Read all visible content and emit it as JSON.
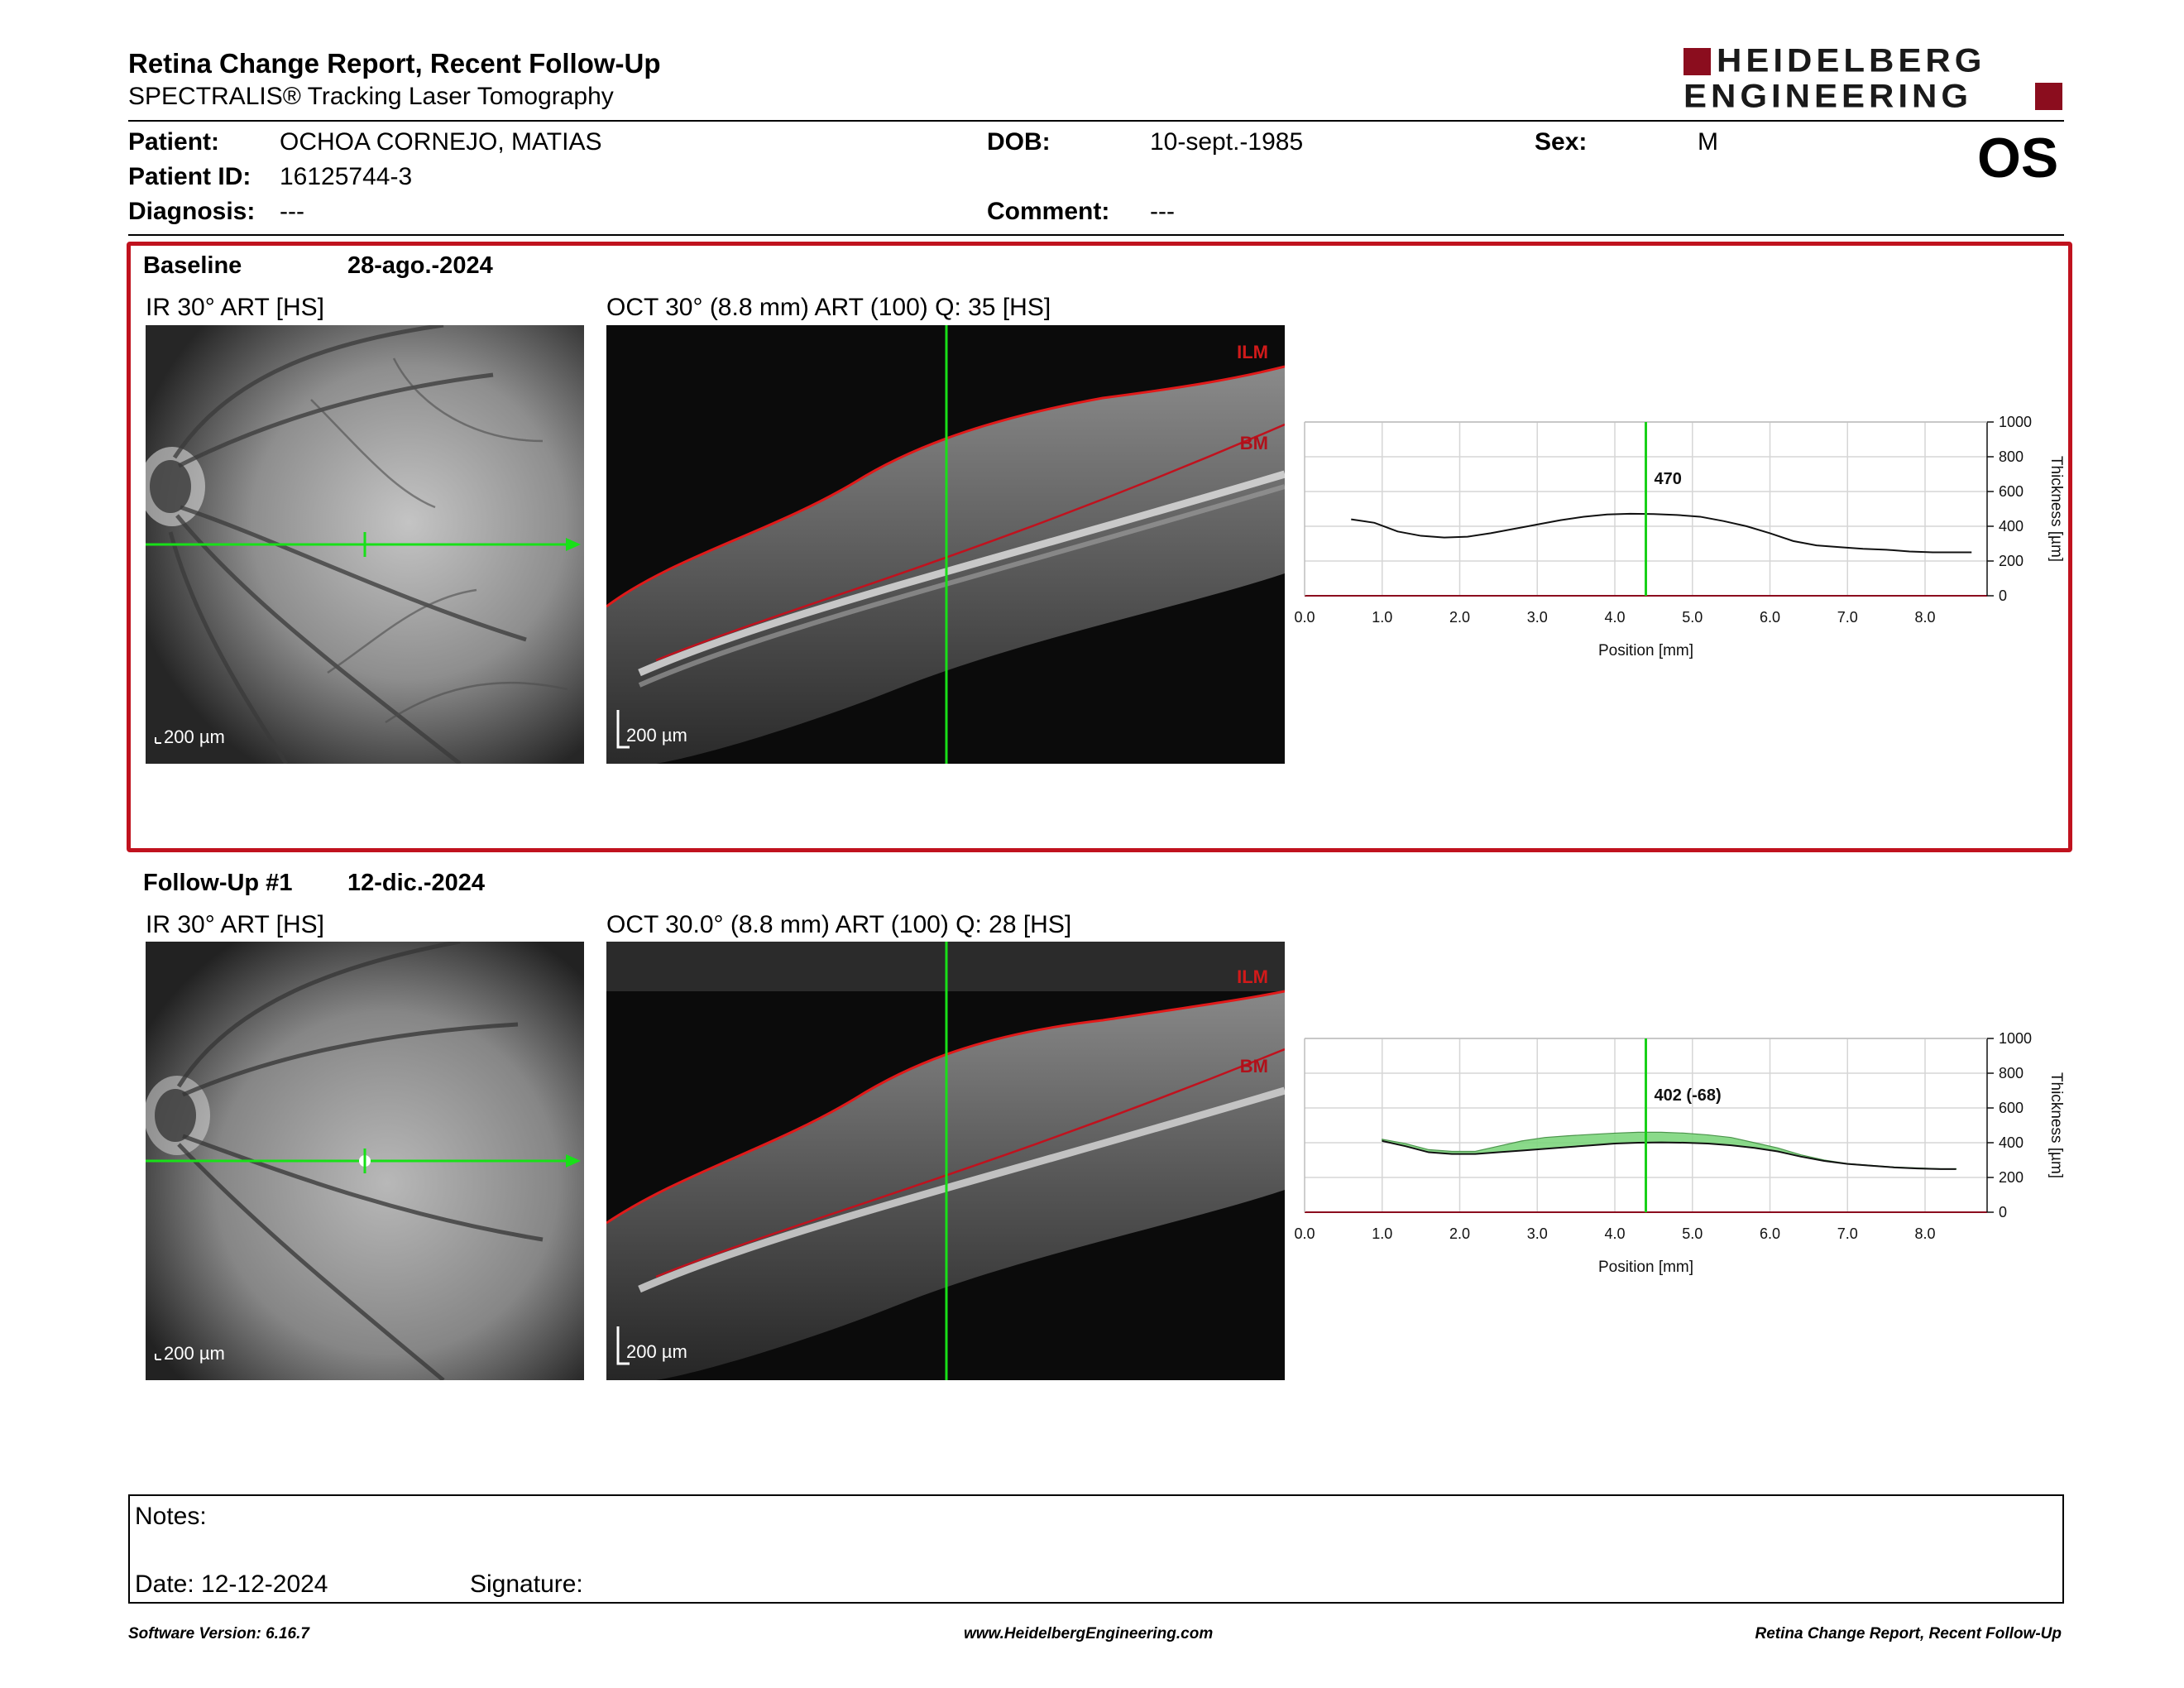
{
  "header": {
    "title": "Retina Change Report, Recent Follow-Up",
    "subtitle": "SPECTRALIS® Tracking Laser Tomography",
    "logo_line1": "HEIDELBERG",
    "logo_line2": "ENGINEERING",
    "brand_color": "#8b0d1e"
  },
  "patient": {
    "patient_label": "Patient:",
    "patient_value": "OCHOA CORNEJO, MATIAS",
    "id_label": "Patient ID:",
    "id_value": "16125744-3",
    "diagnosis_label": "Diagnosis:",
    "diagnosis_value": "---",
    "dob_label": "DOB:",
    "dob_value": "10-sept.-1985",
    "comment_label": "Comment:",
    "comment_value": "---",
    "sex_label": "Sex:",
    "sex_value": "M",
    "eye": "OS"
  },
  "baseline": {
    "label": "Baseline",
    "date": "28-ago.-2024",
    "ir_title": "IR 30° ART [HS]",
    "oct_title": "OCT 30° (8.8 mm) ART (100) Q: 35 [HS]",
    "ir_scale": "200 µm",
    "oct_scale": "200 µm",
    "ilm_label": "ILM",
    "bm_label": "BM",
    "box_color": "#c0121e"
  },
  "followup": {
    "label": "Follow-Up #1",
    "date": "12-dic.-2024",
    "ir_title": "IR 30° ART [HS]",
    "oct_title": "OCT 30.0° (8.8 mm) ART (100) Q: 28 [HS]",
    "ir_scale": "200 µm",
    "oct_scale": "200 µm",
    "ilm_label": "ILM",
    "bm_label": "BM"
  },
  "chart_data": [
    {
      "type": "line",
      "xlabel": "Position [mm]",
      "ylabel": "Thickness [µm]",
      "xlim": [
        0,
        8.8
      ],
      "ylim": [
        0,
        1000
      ],
      "x_ticks": [
        "0.0",
        "1.0",
        "2.0",
        "3.0",
        "4.0",
        "5.0",
        "6.0",
        "7.0",
        "8.0"
      ],
      "y_ticks": [
        "0",
        "200",
        "400",
        "600",
        "800",
        "1000"
      ],
      "marker_x": 4.4,
      "marker_label": "470",
      "series": [
        {
          "x": [
            0.6,
            0.9,
            1.2,
            1.5,
            1.8,
            2.1,
            2.4,
            2.7,
            3.0,
            3.3,
            3.6,
            3.9,
            4.2,
            4.5,
            4.8,
            5.1,
            5.4,
            5.7,
            6.0,
            6.3,
            6.6,
            6.9,
            7.2,
            7.5,
            7.8,
            8.1,
            8.4,
            8.6
          ],
          "values": [
            440,
            420,
            370,
            345,
            335,
            340,
            360,
            385,
            410,
            435,
            455,
            468,
            472,
            470,
            465,
            455,
            430,
            400,
            360,
            315,
            290,
            280,
            270,
            265,
            255,
            250,
            250,
            250
          ]
        }
      ]
    },
    {
      "type": "area",
      "xlabel": "Position [mm]",
      "ylabel": "Thickness [µm]",
      "xlim": [
        0,
        8.8
      ],
      "ylim": [
        0,
        1000
      ],
      "x_ticks": [
        "0.0",
        "1.0",
        "2.0",
        "3.0",
        "4.0",
        "5.0",
        "6.0",
        "7.0",
        "8.0"
      ],
      "y_ticks": [
        "0",
        "200",
        "400",
        "600",
        "800",
        "1000"
      ],
      "marker_x": 4.4,
      "marker_label": "402 (-68)",
      "fill_color": "#7ed67e",
      "series": [
        {
          "x": [
            1.0,
            1.3,
            1.6,
            1.9,
            2.2,
            2.5,
            2.8,
            3.1,
            3.4,
            3.7,
            4.0,
            4.3,
            4.6,
            4.9,
            5.2,
            5.5,
            5.8,
            6.1,
            6.4,
            6.7,
            7.0,
            7.3,
            7.6,
            7.9,
            8.2,
            8.4
          ],
          "values": [
            420,
            395,
            360,
            350,
            350,
            380,
            410,
            430,
            440,
            448,
            455,
            460,
            460,
            455,
            445,
            430,
            400,
            370,
            330,
            300,
            280,
            270,
            260,
            255,
            250,
            250
          ]
        },
        {
          "x": [
            1.0,
            1.3,
            1.6,
            1.9,
            2.2,
            2.5,
            2.8,
            3.1,
            3.4,
            3.7,
            4.0,
            4.3,
            4.6,
            4.9,
            5.2,
            5.5,
            5.8,
            6.1,
            6.4,
            6.7,
            7.0,
            7.3,
            7.6,
            7.9,
            8.2,
            8.4
          ],
          "values": [
            410,
            380,
            345,
            335,
            335,
            345,
            355,
            365,
            375,
            385,
            395,
            400,
            402,
            400,
            395,
            385,
            370,
            350,
            320,
            295,
            278,
            268,
            258,
            252,
            248,
            248
          ]
        }
      ]
    }
  ],
  "notes": {
    "notes_label": "Notes:",
    "date_text": "Date: 12-12-2024",
    "signature_label": "Signature:"
  },
  "footer": {
    "software": "Software Version: 6.16.7",
    "website": "www.HeidelbergEngineering.com",
    "report_name": "Retina Change Report, Recent Follow-Up"
  }
}
